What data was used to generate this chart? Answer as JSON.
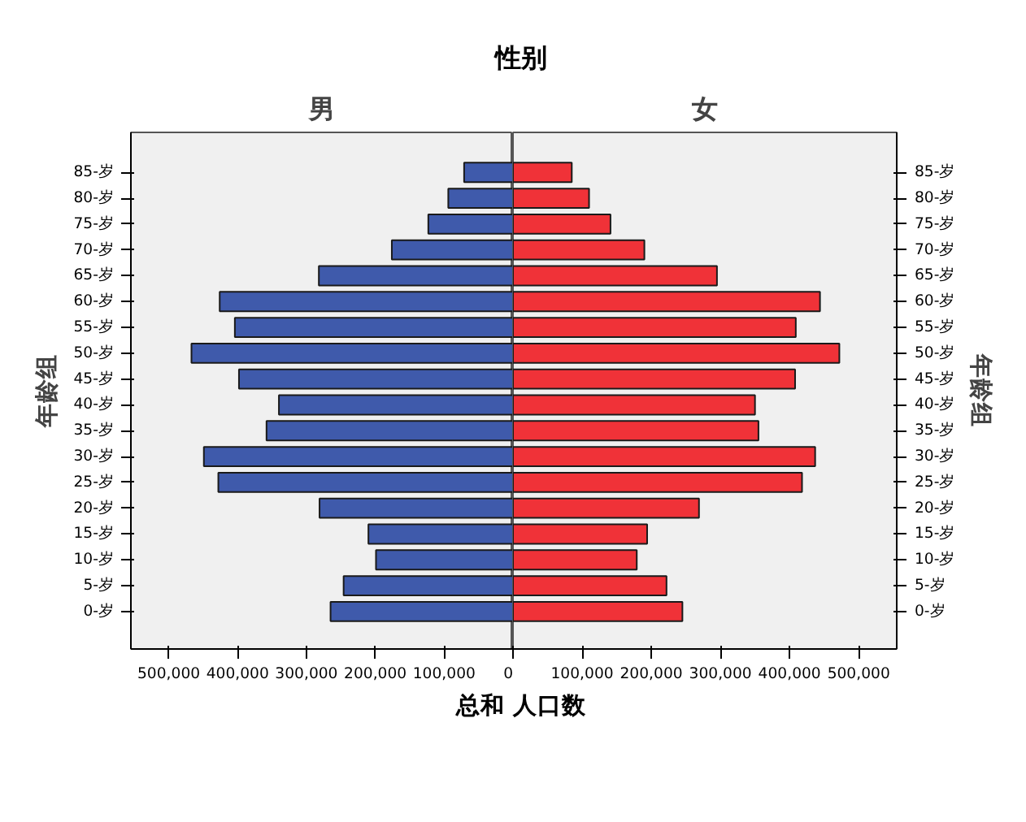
{
  "chart_data": [
    {
      "type": "bar",
      "orientation": "horizontal",
      "title": "性别",
      "subtitle": "男",
      "xlabel": "总和 人口数",
      "ylabel": "年龄组",
      "categories": [
        "85-岁",
        "80-岁",
        "75-岁",
        "70-岁",
        "65-岁",
        "60-岁",
        "55-岁",
        "50-岁",
        "45-岁",
        "40-岁",
        "35-岁",
        "30-岁",
        "25-岁",
        "20-岁",
        "15-岁",
        "10-岁",
        "5-岁",
        "0-岁"
      ],
      "series": [
        {
          "color": "#3f5aab",
          "values": [
            71000,
            94000,
            123000,
            176000,
            282000,
            426000,
            404000,
            467000,
            398000,
            340000,
            358000,
            449000,
            428000,
            281000,
            210000,
            199000,
            246000,
            265000
          ]
        }
      ],
      "xlim": [
        555000,
        0
      ],
      "xticks": [
        {
          "value": 500000,
          "label": "500,000"
        },
        {
          "value": 400000,
          "label": "400,000"
        },
        {
          "value": 300000,
          "label": "300,000"
        },
        {
          "value": 200000,
          "label": "200,000"
        },
        {
          "value": 100000,
          "label": "100,000"
        },
        0
      ],
      "grid": false
    },
    {
      "type": "bar",
      "orientation": "horizontal",
      "subtitle": "女",
      "ylabel": "年龄组",
      "categories": [
        "85-岁",
        "80-岁",
        "75-岁",
        "70-岁",
        "65-岁",
        "60-岁",
        "55-岁",
        "50-岁",
        "45-岁",
        "40-岁",
        "35-岁",
        "30-岁",
        "25-岁",
        "20-岁",
        "15-岁",
        "10-岁",
        "5-岁",
        "0-岁"
      ],
      "series": [
        {
          "color": "#f03238",
          "values": [
            85000,
            110000,
            141000,
            190000,
            295000,
            444000,
            409000,
            472000,
            408000,
            350000,
            355000,
            437000,
            418000,
            269000,
            194000,
            179000,
            222000,
            245000
          ]
        }
      ],
      "xlim": [
        0,
        555000
      ],
      "xticks": [
        {
          "value": 0,
          "label": null
        },
        {
          "value": 100000,
          "label": "100,000"
        },
        {
          "value": 200000,
          "label": "200,000"
        },
        {
          "value": 300000,
          "label": "300,000"
        },
        {
          "value": 400000,
          "label": "400,000"
        },
        {
          "value": 500000,
          "label": "500,000"
        }
      ],
      "grid": false
    }
  ]
}
